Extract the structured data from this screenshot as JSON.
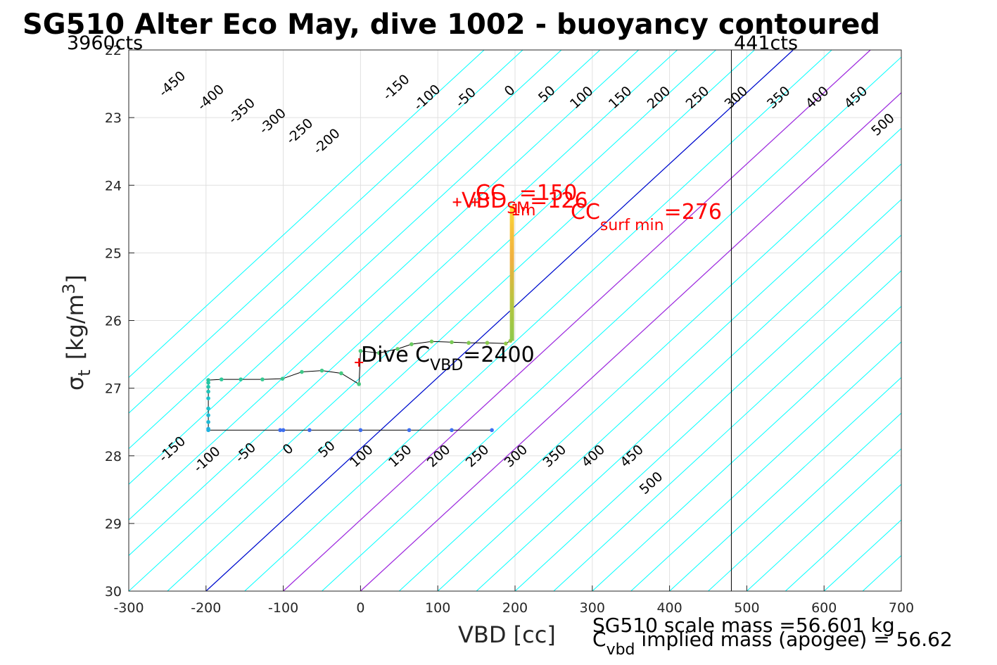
{
  "title": "SG510 Alter Eco May, dive 1002 - buoyancy contoured",
  "chart_data": {
    "type": "line",
    "xlabel": "VBD [cc]",
    "ylabel": {
      "base": "σ",
      "sub": "t",
      "unit_pre": "[kg/m",
      "unit_sup": "3",
      "unit_post": "]"
    },
    "xlim": [
      -300,
      700
    ],
    "ylim": [
      22,
      30
    ],
    "y_reversed": true,
    "grid": true,
    "x_ticks": [
      "-300",
      "-200",
      "-100",
      "0",
      "100",
      "200",
      "300",
      "400",
      "500",
      "600",
      "700"
    ],
    "x_tick_values": [
      -300,
      -200,
      -100,
      0,
      100,
      200,
      300,
      400,
      500,
      600,
      700
    ],
    "y_ticks": [
      "22",
      "23",
      "24",
      "25",
      "26",
      "27",
      "28",
      "29",
      "30"
    ],
    "y_tick_values": [
      22,
      23,
      24,
      25,
      26,
      27,
      28,
      29,
      30
    ],
    "contour_slope_cc_per_sigma": 95,
    "contours": [
      {
        "level": -450,
        "v_at_30": -600
      },
      {
        "level": -400,
        "v_at_30": -550
      },
      {
        "level": -350,
        "v_at_30": -500
      },
      {
        "level": -300,
        "v_at_30": -450
      },
      {
        "level": -250,
        "v_at_30": -400
      },
      {
        "level": -200,
        "v_at_30": -350
      },
      {
        "level": -150,
        "v_at_30": -300
      },
      {
        "level": -100,
        "v_at_30": -250
      },
      {
        "level": -50,
        "v_at_30": -200
      },
      {
        "level": 0,
        "v_at_30": -200
      },
      {
        "level": 50,
        "v_at_30": -150
      },
      {
        "level": 100,
        "v_at_30": -100
      },
      {
        "level": 150,
        "v_at_30": -50
      },
      {
        "level": 200,
        "v_at_30": 0
      },
      {
        "level": 250,
        "v_at_30": 50
      },
      {
        "level": 300,
        "v_at_30": 100
      },
      {
        "level": 350,
        "v_at_30": 150
      },
      {
        "level": 400,
        "v_at_30": 200
      },
      {
        "level": 450,
        "v_at_30": 250
      },
      {
        "level": 500,
        "v_at_30": 300
      }
    ],
    "contour_lines_v_at_30": [
      -600,
      -550,
      -500,
      -450,
      -400,
      -350,
      -300,
      -250,
      -200,
      -150,
      -100,
      -50,
      0,
      50,
      100,
      150,
      200,
      250,
      300,
      350,
      400,
      450,
      500,
      550,
      600,
      650
    ],
    "highlight_lines": [
      {
        "v_at_30": -200,
        "color": "#0000cc"
      },
      {
        "v_at_30": -100,
        "color": "#aa22dd"
      },
      {
        "v_at_30": 0,
        "color": "#aa22dd"
      }
    ],
    "top_labels": [
      {
        "text": "-450",
        "x": -240,
        "y": 22.55
      },
      {
        "text": "-400",
        "x": -190,
        "y": 22.75
      },
      {
        "text": "-350",
        "x": -150,
        "y": 22.95
      },
      {
        "text": "-300",
        "x": -110,
        "y": 23.1
      },
      {
        "text": "-250",
        "x": -75,
        "y": 23.25
      },
      {
        "text": "-200",
        "x": -40,
        "y": 23.4
      },
      {
        "text": "-150",
        "x": 50,
        "y": 22.6
      },
      {
        "text": "-100",
        "x": 90,
        "y": 22.75
      },
      {
        "text": "-50",
        "x": 140,
        "y": 22.75
      },
      {
        "text": "0",
        "x": 197,
        "y": 22.65
      },
      {
        "text": "50",
        "x": 245,
        "y": 22.7
      },
      {
        "text": "100",
        "x": 290,
        "y": 22.75
      },
      {
        "text": "150",
        "x": 340,
        "y": 22.75
      },
      {
        "text": "200",
        "x": 390,
        "y": 22.75
      },
      {
        "text": "250",
        "x": 440,
        "y": 22.75
      },
      {
        "text": "300",
        "x": 490,
        "y": 22.75
      },
      {
        "text": "350",
        "x": 545,
        "y": 22.75
      },
      {
        "text": "400",
        "x": 595,
        "y": 22.75
      },
      {
        "text": "450",
        "x": 645,
        "y": 22.75
      },
      {
        "text": "500",
        "x": 680,
        "y": 23.15
      }
    ],
    "bottom_labels": [
      {
        "text": "-150",
        "x": -240,
        "y": 27.95
      },
      {
        "text": "-100",
        "x": -195,
        "y": 28.1
      },
      {
        "text": "-50",
        "x": -145,
        "y": 28.0
      },
      {
        "text": "0",
        "x": -90,
        "y": 27.95
      },
      {
        "text": "50",
        "x": -40,
        "y": 27.95
      },
      {
        "text": "100",
        "x": 5,
        "y": 28.05
      },
      {
        "text": "150",
        "x": 55,
        "y": 28.05
      },
      {
        "text": "200",
        "x": 105,
        "y": 28.05
      },
      {
        "text": "250",
        "x": 155,
        "y": 28.05
      },
      {
        "text": "300",
        "x": 205,
        "y": 28.05
      },
      {
        "text": "350",
        "x": 255,
        "y": 28.05
      },
      {
        "text": "400",
        "x": 305,
        "y": 28.05
      },
      {
        "text": "450",
        "x": 355,
        "y": 28.05
      },
      {
        "text": "500",
        "x": 380,
        "y": 28.45
      }
    ],
    "vertical_marker": {
      "x": 480
    },
    "profile": [
      {
        "x": 170,
        "y": 27.62
      },
      {
        "x": 118,
        "y": 27.62
      },
      {
        "x": 63,
        "y": 27.62
      },
      {
        "x": 0,
        "y": 27.62
      },
      {
        "x": -66,
        "y": 27.62
      },
      {
        "x": -100,
        "y": 27.62
      },
      {
        "x": -104,
        "y": 27.62
      },
      {
        "x": -197,
        "y": 27.62
      },
      {
        "x": -197,
        "y": 27.6
      },
      {
        "x": -197,
        "y": 27.5
      },
      {
        "x": -197,
        "y": 27.4
      },
      {
        "x": -197,
        "y": 27.3
      },
      {
        "x": -197,
        "y": 27.15
      },
      {
        "x": -197,
        "y": 27.05
      },
      {
        "x": -197,
        "y": 26.98
      },
      {
        "x": -197,
        "y": 26.92
      },
      {
        "x": -197,
        "y": 26.88
      },
      {
        "x": -180,
        "y": 26.87
      },
      {
        "x": -155,
        "y": 26.87
      },
      {
        "x": -127,
        "y": 26.87
      },
      {
        "x": -101,
        "y": 26.86
      },
      {
        "x": -76,
        "y": 26.76
      },
      {
        "x": -50,
        "y": 26.74
      },
      {
        "x": -25,
        "y": 26.78
      },
      {
        "x": -2,
        "y": 26.94
      },
      {
        "x": 0,
        "y": 26.45
      },
      {
        "x": 24,
        "y": 26.48
      },
      {
        "x": 48,
        "y": 26.42
      },
      {
        "x": 66,
        "y": 26.35
      },
      {
        "x": 92,
        "y": 26.31
      },
      {
        "x": 118,
        "y": 26.32
      },
      {
        "x": 140,
        "y": 26.33
      },
      {
        "x": 164,
        "y": 26.33
      },
      {
        "x": 188,
        "y": 26.34
      },
      {
        "x": 194,
        "y": 26.3
      }
    ],
    "profile_point_colors": [
      "#3d6ef0",
      "#3d6ef0",
      "#3d6ef0",
      "#3d6ef0",
      "#3d6ef0",
      "#3d6ef0",
      "#3d6ef0",
      "#1fb2e0",
      "#1fb2e0",
      "#1cbad6",
      "#1cbad6",
      "#18c2cc",
      "#18c2cc",
      "#20c4b8",
      "#22c6ad",
      "#24c7a6",
      "#28c8a0",
      "#2ec898",
      "#2ec898",
      "#36c890",
      "#36c890",
      "#3ec988",
      "#3ec988",
      "#46c980",
      "#46c980",
      "#50c978",
      "#58c970",
      "#60c968",
      "#68c960",
      "#70c95a",
      "#78c955",
      "#80c950",
      "#88c84c",
      "#90c848",
      "#98c645"
    ],
    "vertical_trace": {
      "x": 196,
      "y_from": 26.3,
      "y_to": 24.3
    },
    "vertical_trace_gradient": [
      "#8ec94a",
      "#b9c440",
      "#f0b040",
      "#f7c63a",
      "#fbe033"
    ],
    "markers": [
      {
        "x": -2,
        "y": 26.62,
        "color": "#ff0000"
      },
      {
        "x": 125,
        "y": 24.25,
        "color": "#ff0000"
      },
      {
        "x": 148,
        "y": 24.25,
        "color": "#ff0000"
      }
    ],
    "annotations": {
      "dive_cvbd": {
        "pre": "Dive C",
        "sub": "VBD",
        "post": "=2400"
      },
      "cc": {
        "pre": "CC",
        "post": "=150"
      },
      "vbd_sm": {
        "pre": "VBD",
        "sub": "SM",
        "post": "=126"
      },
      "cc_surf_min": {
        "pre": "CC",
        "sub": "surf min",
        "post": "=276"
      },
      "one_m": "1m"
    }
  },
  "top_left_counts": "3960cts",
  "top_right_counts": "441cts",
  "footer": {
    "scale_mass": "SG510 scale mass =56.601 kg",
    "implied_pre": "C",
    "implied_sub": "vbd",
    "implied_post": " implied mass (apogee) = 56.62"
  },
  "colors": {
    "contour": "#00ffff",
    "zero_contour": "#0000cc",
    "purple": "#aa22dd",
    "annotation": "#ff0000",
    "grid": "#e0e0e0"
  }
}
